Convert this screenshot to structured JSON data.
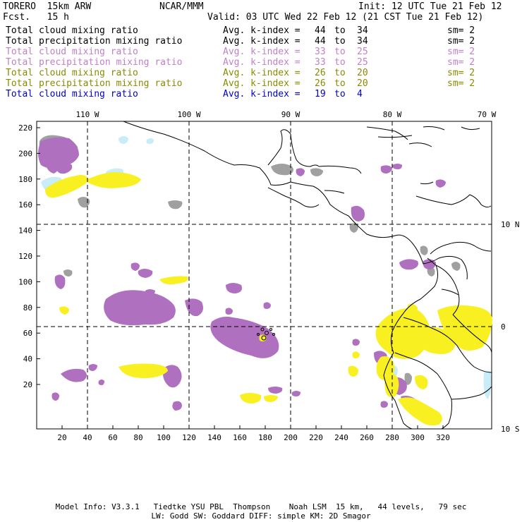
{
  "header": {
    "model": "TORERO  15km ARW",
    "center": "NCAR/MMM",
    "init": "Init: 12 UTC Tue 21 Feb 12",
    "fcst": "Fcst.   15 h",
    "valid": "Valid: 03 UTC Wed 22 Feb 12 (21 CST Tue 21 Feb 12)"
  },
  "fields": [
    {
      "name": "Total cloud mixing ratio",
      "avg_label": "Avg. k-index =",
      "from": "44",
      "to_word": "to",
      "to": "34",
      "sm": "sm= 2",
      "color": "#000000"
    },
    {
      "name": "Total precipitation mixing ratio",
      "avg_label": "Avg. k-index =",
      "from": "44",
      "to_word": "to",
      "to": "34",
      "sm": "sm= 2",
      "color": "#000000"
    },
    {
      "name": "Total cloud mixing ratio",
      "avg_label": "Avg. k-index =",
      "from": "33",
      "to_word": "to",
      "to": "25",
      "sm": "sm= 2",
      "color": "#c080c8"
    },
    {
      "name": "Total precipitation mixing ratio",
      "avg_label": "Avg. k-index =",
      "from": "33",
      "to_word": "to",
      "to": "25",
      "sm": "sm= 2",
      "color": "#c080c8"
    },
    {
      "name": "Total cloud mixing ratio",
      "avg_label": "Avg. k-index =",
      "from": "26",
      "to_word": "to",
      "to": "20",
      "sm": "sm= 2",
      "color": "#8a8a00"
    },
    {
      "name": "Total precipitation mixing ratio",
      "avg_label": "Avg. k-index =",
      "from": "26",
      "to_word": "to",
      "to": "20",
      "sm": "sm= 2",
      "color": "#8a8a00"
    },
    {
      "name": "Total cloud mixing ratio",
      "avg_label": "Avg. k-index =",
      "from": "19",
      "to_word": "to",
      "to": "4",
      "sm": "",
      "color": "#0000d0"
    }
  ],
  "axes": {
    "lon_labels": [
      "110 W",
      "100 W",
      "90 W",
      "80 W",
      "70 W"
    ],
    "lat_labels": [
      "10 N",
      "0",
      "10 S"
    ],
    "x_ticks": [
      "20",
      "40",
      "60",
      "80",
      "100",
      "120",
      "140",
      "160",
      "180",
      "200",
      "220",
      "240",
      "260",
      "280",
      "300",
      "320"
    ],
    "y_ticks": [
      "220",
      "200",
      "180",
      "160",
      "140",
      "120",
      "100",
      "80",
      "60",
      "40",
      "20"
    ]
  },
  "footer": {
    "line1": "Model Info: V3.3.1   Tiedtke YSU PBL  Thompson    Noah LSM  15 km,   44 levels,   79 sec",
    "line2": "LW: Godd SW: Goddard DIFF: simple KM: 2D Smagor"
  },
  "colors": {
    "gray": "#a0a0a0",
    "purple": "#b070c0",
    "yellow": "#f8f020",
    "lightblue": "#c8ecf8"
  }
}
